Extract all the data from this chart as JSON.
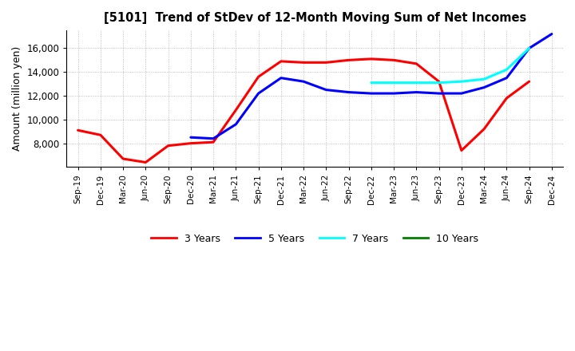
{
  "title": "[5101]  Trend of StDev of 12-Month Moving Sum of Net Incomes",
  "ylabel": "Amount (million yen)",
  "x_labels": [
    "Sep-19",
    "Dec-19",
    "Mar-20",
    "Jun-20",
    "Sep-20",
    "Dec-20",
    "Mar-21",
    "Jun-21",
    "Sep-21",
    "Dec-21",
    "Mar-22",
    "Jun-22",
    "Sep-22",
    "Dec-22",
    "Mar-23",
    "Jun-23",
    "Sep-23",
    "Dec-23",
    "Mar-24",
    "Jun-24",
    "Sep-24",
    "Dec-24"
  ],
  "series": {
    "3 Years": {
      "color": "#FF0000",
      "data_x": [
        0,
        1,
        2,
        3,
        4,
        5,
        6,
        7,
        8,
        9,
        10,
        11,
        12,
        13,
        14,
        15,
        16,
        17,
        18,
        19,
        20
      ],
      "data_y": [
        9100,
        8700,
        6700,
        6400,
        7800,
        8000,
        8100,
        10800,
        13600,
        14900,
        14800,
        14800,
        15000,
        15100,
        15000,
        14700,
        13200,
        7400,
        9200,
        11800,
        13200
      ]
    },
    "5 Years": {
      "color": "#0000FF",
      "data_x": [
        5,
        6,
        7,
        8,
        9,
        10,
        11,
        12,
        13,
        14,
        15,
        16,
        17,
        18,
        19,
        20,
        21
      ],
      "data_y": [
        8500,
        8400,
        9600,
        12200,
        13500,
        13200,
        12500,
        12300,
        12200,
        12200,
        12300,
        12200,
        12200,
        12700,
        13500,
        16000,
        17200
      ]
    },
    "7 Years": {
      "color": "#00FFFF",
      "data_x": [
        13,
        14,
        15,
        16,
        17,
        18,
        19,
        20
      ],
      "data_y": [
        13100,
        13100,
        13100,
        13100,
        13200,
        13400,
        14200,
        16000
      ]
    },
    "10 Years": {
      "color": "#008000",
      "data_x": [],
      "data_y": []
    }
  },
  "ylim": [
    6000,
    17500
  ],
  "yticks": [
    8000,
    10000,
    12000,
    14000,
    16000
  ],
  "background_color": "#FFFFFF",
  "grid_color": "#999999"
}
